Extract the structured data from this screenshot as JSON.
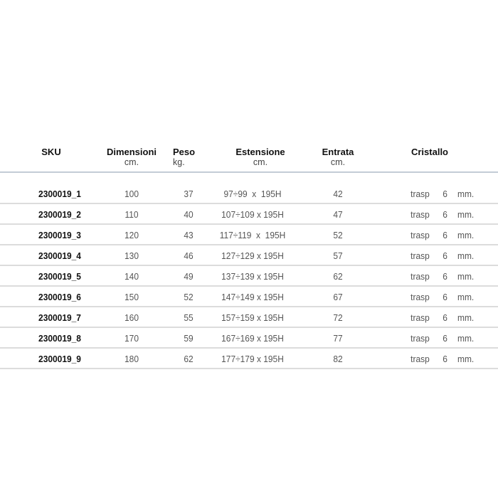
{
  "headers": [
    {
      "label": "SKU",
      "unit": ""
    },
    {
      "label": "Dimensioni",
      "unit": "cm."
    },
    {
      "label": "Peso",
      "unit": "kg."
    },
    {
      "label": "Estensione",
      "unit": "cm."
    },
    {
      "label": "Entrata",
      "unit": "cm."
    },
    {
      "label": "Cristallo",
      "unit": ""
    }
  ],
  "rows": [
    {
      "sku": "2300019_1",
      "dim": "100",
      "peso": "37",
      "est": "97÷99  x  195H",
      "ent": "42",
      "cr": "trasp",
      "sp": "6",
      "mm": "mm."
    },
    {
      "sku": "2300019_2",
      "dim": "110",
      "peso": "40",
      "est": "107÷109 x 195H",
      "ent": "47",
      "cr": "trasp",
      "sp": "6",
      "mm": "mm."
    },
    {
      "sku": "2300019_3",
      "dim": "120",
      "peso": "43",
      "est": "117÷119  x  195H",
      "ent": "52",
      "cr": "trasp",
      "sp": "6",
      "mm": "mm."
    },
    {
      "sku": "2300019_4",
      "dim": "130",
      "peso": "46",
      "est": "127÷129 x 195H",
      "ent": "57",
      "cr": "trasp",
      "sp": "6",
      "mm": "mm."
    },
    {
      "sku": "2300019_5",
      "dim": "140",
      "peso": "49",
      "est": "137÷139 x 195H",
      "ent": "62",
      "cr": "trasp",
      "sp": "6",
      "mm": "mm."
    },
    {
      "sku": "2300019_6",
      "dim": "150",
      "peso": "52",
      "est": "147÷149 x 195H",
      "ent": "67",
      "cr": "trasp",
      "sp": "6",
      "mm": "mm."
    },
    {
      "sku": "2300019_7",
      "dim": "160",
      "peso": "55",
      "est": "157÷159 x 195H",
      "ent": "72",
      "cr": "trasp",
      "sp": "6",
      "mm": "mm."
    },
    {
      "sku": "2300019_8",
      "dim": "170",
      "peso": "59",
      "est": "167÷169 x 195H",
      "ent": "77",
      "cr": "trasp",
      "sp": "6",
      "mm": "mm."
    },
    {
      "sku": "2300019_9",
      "dim": "180",
      "peso": "62",
      "est": "177÷179 x 195H",
      "ent": "82",
      "cr": "trasp",
      "sp": "6",
      "mm": "mm."
    }
  ]
}
